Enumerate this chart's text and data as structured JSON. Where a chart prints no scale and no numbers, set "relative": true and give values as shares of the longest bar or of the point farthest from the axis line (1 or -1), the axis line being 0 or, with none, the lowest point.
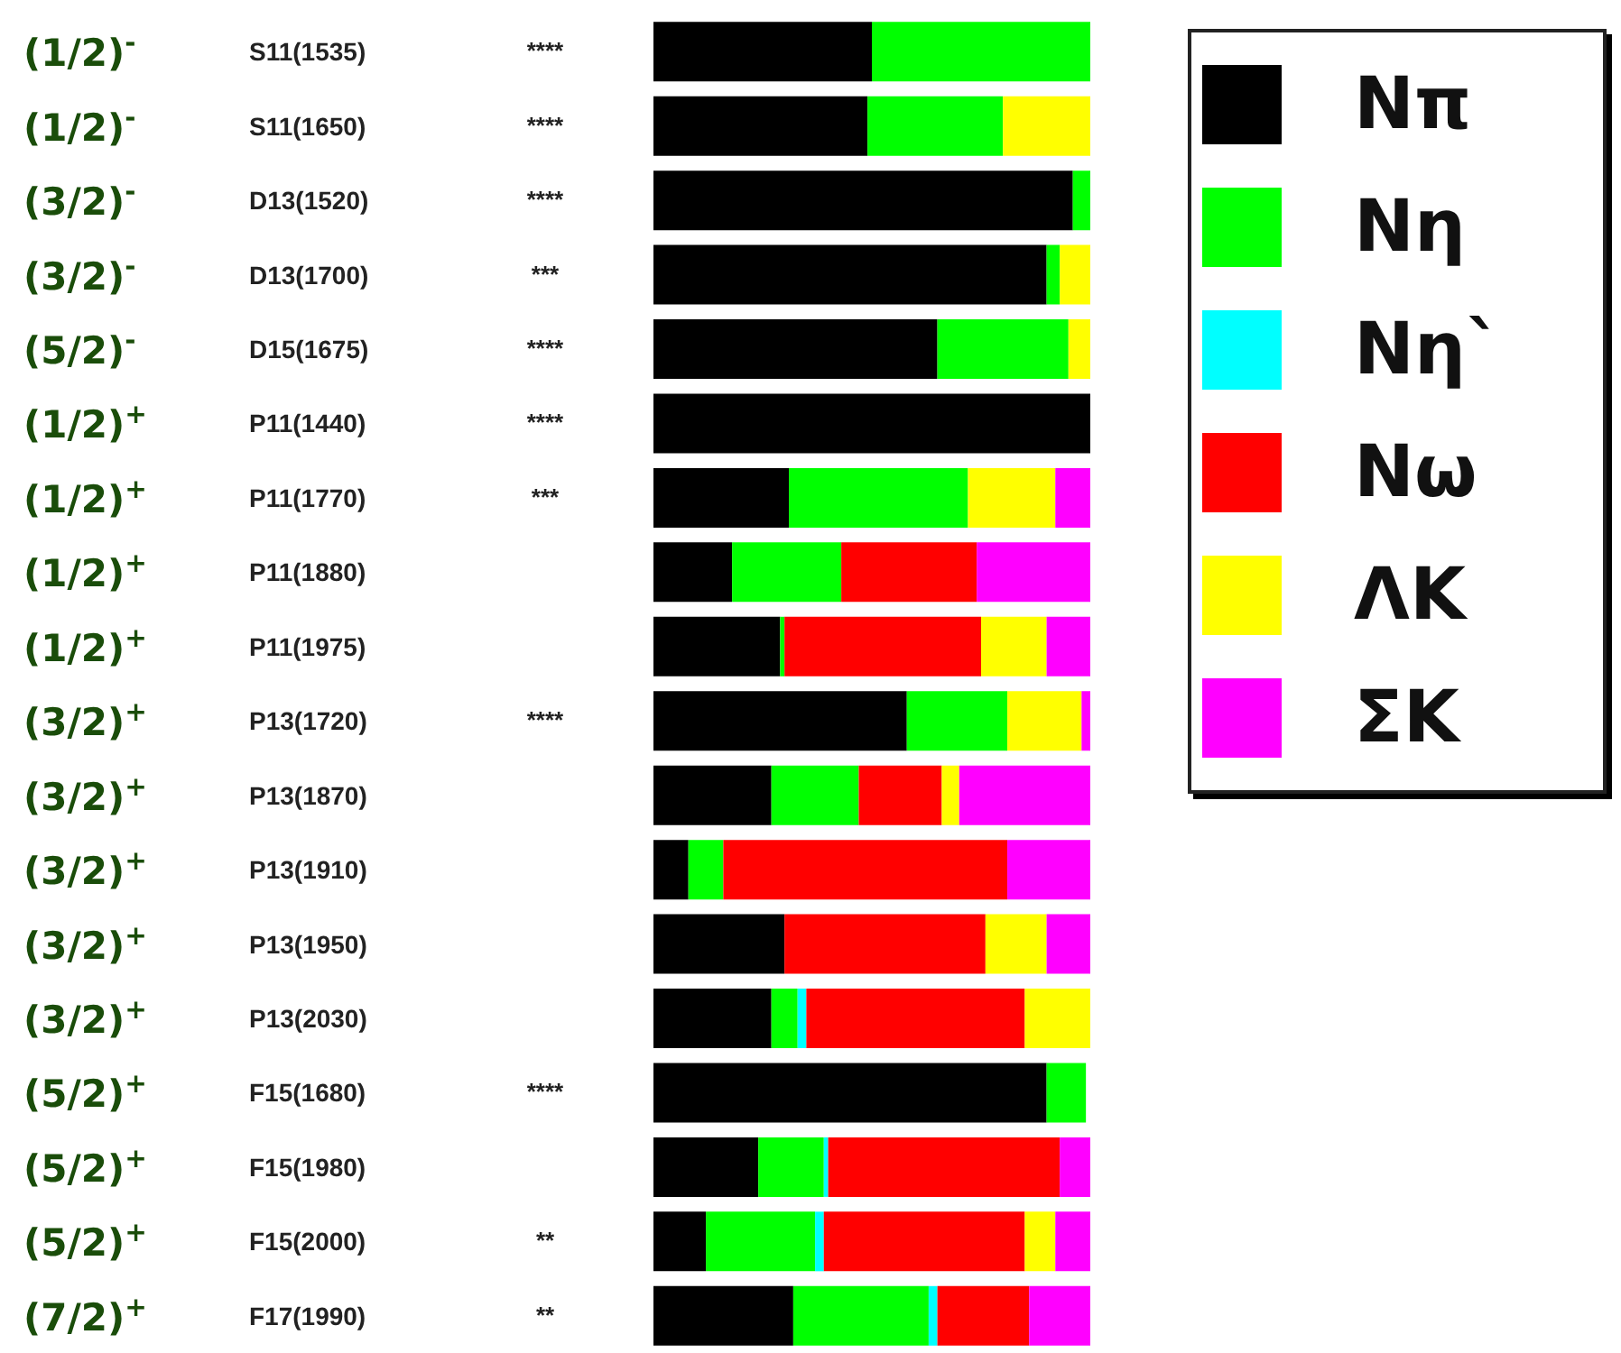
{
  "chart_data": {
    "type": "bar",
    "orientation": "horizontal",
    "stacked": true,
    "relative": true,
    "legend": "top right",
    "categories": [
      "S11(1535)",
      "S11(1650)",
      "D13(1520)",
      "D13(1700)",
      "D15(1675)",
      "P11(1440)",
      "P11(1770)",
      "P11(1880)",
      "P11(1975)",
      "P13(1720)",
      "P13(1870)",
      "P13(1910)",
      "P13(1950)",
      "P13(2030)",
      "F15(1680)",
      "F15(1980)",
      "F15(2000)",
      "F17(1990)"
    ],
    "series": [
      {
        "name": "Nπ",
        "color": "#000000",
        "values": [
          0.5,
          0.49,
          0.96,
          0.9,
          0.65,
          1.0,
          0.31,
          0.18,
          0.29,
          0.58,
          0.27,
          0.08,
          0.3,
          0.27,
          0.9,
          0.24,
          0.12,
          0.32
        ]
      },
      {
        "name": "Nη",
        "color": "#00ff00",
        "values": [
          0.5,
          0.31,
          0.04,
          0.03,
          0.3,
          null,
          0.41,
          0.25,
          0.01,
          0.23,
          0.2,
          0.08,
          null,
          0.06,
          0.09,
          0.15,
          0.25,
          0.31
        ]
      },
      {
        "name": "Nη`",
        "color": "#00ffff",
        "values": [
          null,
          null,
          null,
          null,
          null,
          null,
          null,
          null,
          null,
          null,
          null,
          null,
          null,
          0.02,
          null,
          0.01,
          0.02,
          0.02
        ]
      },
      {
        "name": "Nω",
        "color": "#ff0000",
        "values": [
          null,
          null,
          null,
          null,
          null,
          null,
          null,
          0.31,
          0.45,
          null,
          0.19,
          0.65,
          0.46,
          0.5,
          null,
          0.53,
          0.46,
          0.21
        ]
      },
      {
        "name": "ΛK",
        "color": "#ffff00",
        "values": [
          null,
          0.2,
          null,
          0.07,
          0.05,
          null,
          0.2,
          null,
          0.15,
          0.17,
          0.04,
          null,
          0.14,
          0.15,
          null,
          null,
          0.07,
          null
        ]
      },
      {
        "name": "ΣK",
        "color": "#ff00ff",
        "values": [
          null,
          null,
          null,
          null,
          null,
          null,
          0.08,
          0.26,
          0.1,
          0.02,
          0.3,
          0.19,
          0.1,
          null,
          null,
          0.07,
          0.08,
          0.14
        ]
      }
    ],
    "annotations": [
      "(1/2)$^{-}$",
      "(1/2)$^{-}$",
      "(3/2)$^{-}$",
      "(3/2)$^{-}$",
      "(5/2)$^{-}$",
      "(1/2)$^{+}$",
      "(1/2)$^{+}$",
      "(1/2)$^{+}$",
      "(1/2)$^{+}$",
      "(3/2)$^{+}$",
      "(3/2)$^{+}$",
      "(3/2)$^{+}$",
      "(3/2)$^{+}$",
      "(3/2)$^{+}$",
      "(5/2)$^{+}$",
      "(5/2)$^{+}$",
      "(5/2)$^{+}$",
      "(7/2)$^{+}$",
      "****",
      "****",
      "****",
      "***",
      "****",
      "****",
      "***",
      null,
      null,
      "****",
      null,
      null,
      null,
      null,
      "****",
      null,
      "**",
      "**"
    ]
  }
}
